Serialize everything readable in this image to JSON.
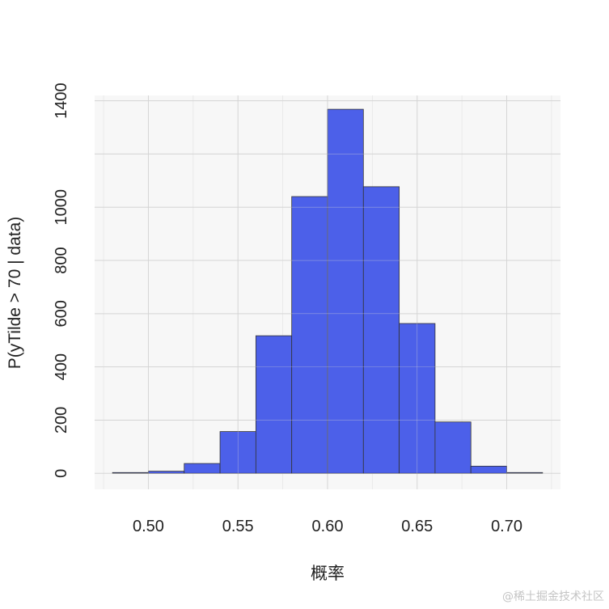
{
  "chart_data": {
    "type": "bar",
    "subtype": "histogram",
    "bins": [
      {
        "start": 0.48,
        "end": 0.5,
        "count": 3
      },
      {
        "start": 0.5,
        "end": 0.52,
        "count": 8
      },
      {
        "start": 0.52,
        "end": 0.54,
        "count": 37
      },
      {
        "start": 0.54,
        "end": 0.56,
        "count": 157
      },
      {
        "start": 0.56,
        "end": 0.58,
        "count": 517
      },
      {
        "start": 0.58,
        "end": 0.6,
        "count": 1040
      },
      {
        "start": 0.6,
        "end": 0.62,
        "count": 1368
      },
      {
        "start": 0.62,
        "end": 0.64,
        "count": 1077
      },
      {
        "start": 0.64,
        "end": 0.66,
        "count": 563
      },
      {
        "start": 0.66,
        "end": 0.68,
        "count": 193
      },
      {
        "start": 0.68,
        "end": 0.7,
        "count": 27
      },
      {
        "start": 0.7,
        "end": 0.72,
        "count": 3
      }
    ],
    "xlabel": "概率",
    "ylabel": "P(yTilde > 70 | data)",
    "xlim": [
      0.47,
      0.73
    ],
    "ylim": [
      -60,
      1420
    ],
    "xticks": [
      0.5,
      0.55,
      0.6,
      0.65,
      0.7
    ],
    "xtick_labels": [
      "0.50",
      "0.55",
      "0.60",
      "0.65",
      "0.70"
    ],
    "yticks": [
      0,
      200,
      400,
      600,
      800,
      1000,
      1400
    ],
    "ytick_labels": [
      "0",
      "200",
      "400",
      "600",
      "800",
      "1000",
      "1400"
    ],
    "ygrid_major": [
      0,
      200,
      400,
      600,
      800,
      1000,
      1200,
      1400
    ],
    "xgrid_major": [
      0.5,
      0.55,
      0.6,
      0.65,
      0.7
    ],
    "xgrid_minor": [
      0.475,
      0.525,
      0.575,
      0.625,
      0.675,
      0.725
    ],
    "grid": true,
    "colors": {
      "bar_fill": "#4c60e9",
      "bar_stroke": "#333333",
      "panel_bg": "#f7f7f7",
      "grid_major": "#d6d6d6",
      "grid_minor": "#e6e6e6"
    }
  },
  "watermark": "@稀土掘金技术社区"
}
